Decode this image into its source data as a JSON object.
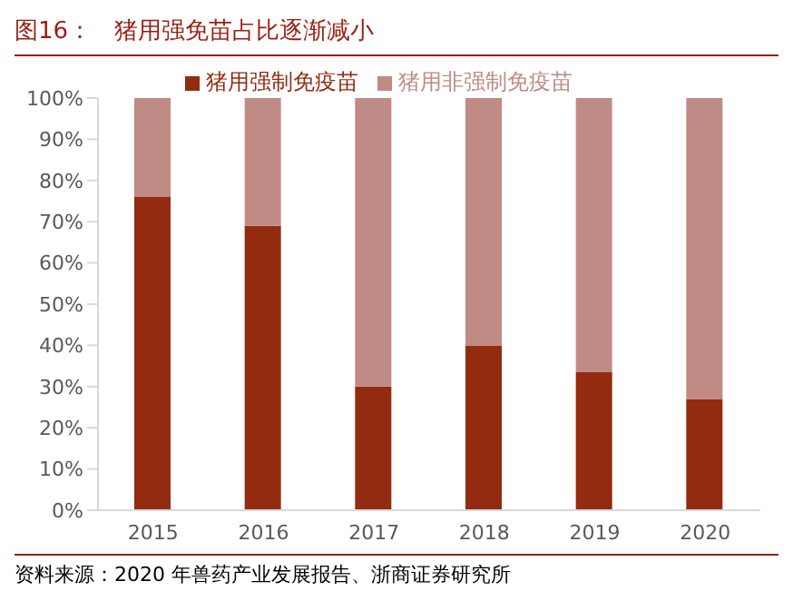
{
  "chart_data": {
    "type": "bar",
    "title": "图16：   猪用强免苗占比逐渐减小",
    "categories": [
      "2015",
      "2016",
      "2017",
      "2018",
      "2019",
      "2020"
    ],
    "stacked": true,
    "series": [
      {
        "name": "猪用强制免疫苗",
        "color": "#922b0f",
        "values": [
          76,
          69,
          30,
          40,
          33.5,
          27
        ]
      },
      {
        "name": "猪用非强制免疫苗",
        "color": "#c08a85",
        "values": [
          24,
          31,
          70,
          60,
          66.5,
          73
        ]
      }
    ],
    "ylim": [
      0,
      100
    ],
    "yticks": [
      {
        "value": 0,
        "label": "0%"
      },
      {
        "value": 10,
        "label": "10%"
      },
      {
        "value": 20,
        "label": "20%"
      },
      {
        "value": 30,
        "label": "30%"
      },
      {
        "value": 40,
        "label": "40%"
      },
      {
        "value": 50,
        "label": "50%"
      },
      {
        "value": 60,
        "label": "60%"
      },
      {
        "value": 70,
        "label": "70%"
      },
      {
        "value": 80,
        "label": "80%"
      },
      {
        "value": 90,
        "label": "90%"
      },
      {
        "value": 100,
        "label": "100%"
      }
    ],
    "legend": "top",
    "grid": false,
    "annotations": [
      "资料来源：2020 年兽药产业发展报告、浙商证券研究所"
    ]
  }
}
